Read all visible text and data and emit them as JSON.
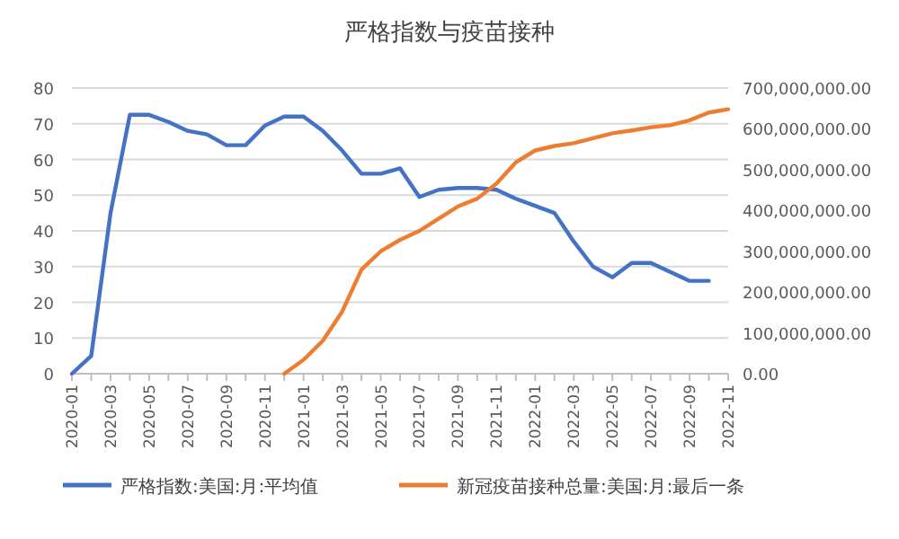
{
  "chart_data": {
    "type": "line",
    "title": "严格指数与疫苗接种",
    "categories": [
      "2020-01",
      null,
      "2020-03",
      null,
      "2020-05",
      null,
      "2020-07",
      null,
      "2020-09",
      null,
      "2020-11",
      null,
      "2021-01",
      null,
      "2021-03",
      null,
      "2021-05",
      null,
      "2021-07",
      null,
      "2021-09",
      null,
      "2021-11",
      null,
      "2022-01",
      null,
      "2022-03",
      null,
      "2022-05",
      null,
      "2022-07",
      null,
      "2022-09",
      null,
      "2022-11"
    ],
    "series": [
      {
        "name": "严格指数:美国:月:平均值",
        "color": "#4472c4",
        "values": [
          0,
          5,
          45,
          72.5,
          72.5,
          70.5,
          68,
          67,
          64,
          64,
          69.5,
          72,
          72,
          68,
          62.5,
          56,
          56,
          57.5,
          49.5,
          51.5,
          52,
          52,
          51.5,
          49,
          47,
          45,
          37,
          30,
          27,
          31,
          31,
          28.5,
          26,
          26,
          null
        ]
      },
      {
        "name": "新冠疫苗接种总量:美国:月:最后一条",
        "color": "#ed7d31",
        "axis": "y2",
        "values": [
          null,
          null,
          null,
          null,
          null,
          null,
          null,
          null,
          null,
          null,
          null,
          0,
          34000000,
          81000000,
          152000000,
          255000000,
          300000000,
          328000000,
          350000000,
          380000000,
          410000000,
          429000000,
          466000000,
          518000000,
          547000000,
          558000000,
          565000000,
          577000000,
          589000000,
          596000000,
          604000000,
          609000000,
          621000000,
          640000000,
          648000000
        ]
      }
    ],
    "ylim": [
      0,
      80
    ],
    "yticks": [
      0,
      10,
      20,
      30,
      40,
      50,
      60,
      70,
      80
    ],
    "y2lim": [
      0,
      700000000
    ],
    "y2ticks": [
      {
        "value": 0,
        "label": "0.00"
      },
      {
        "value": 100000000,
        "label": "100,000,000.00"
      },
      {
        "value": 200000000,
        "label": "200,000,000.00"
      },
      {
        "value": 300000000,
        "label": "300,000,000.00"
      },
      {
        "value": 400000000,
        "label": "400,000,000.00"
      },
      {
        "value": 500000000,
        "label": "500,000,000.00"
      },
      {
        "value": 600000000,
        "label": "600,000,000.00"
      },
      {
        "value": 700000000,
        "label": "700,000,000.00"
      }
    ],
    "grid": "y",
    "legend": "bottom",
    "marker": "none",
    "line_style": "solid"
  }
}
